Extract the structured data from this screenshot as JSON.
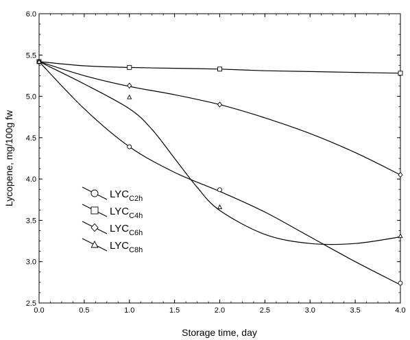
{
  "chart_data": {
    "type": "line",
    "xlabel": "Storage time, day",
    "ylabel": "Lycopene, mg/100g fw",
    "xlim": [
      0.0,
      4.0
    ],
    "ylim": [
      2.5,
      6.0
    ],
    "x_ticks": [
      "0.0",
      "0.5",
      "1.0",
      "1.5",
      "2.0",
      "2.5",
      "3.0",
      "3.5",
      "4.0"
    ],
    "y_ticks": [
      "2.5",
      "3.0",
      "3.5",
      "4.0",
      "4.5",
      "5.0",
      "5.5",
      "6.0"
    ],
    "grid": false,
    "legend_position": "lower-left",
    "series": [
      {
        "name": "LYC",
        "subscript": "C2h",
        "marker": "circle",
        "points": [
          [
            0,
            5.42
          ],
          [
            1,
            4.39
          ],
          [
            2,
            3.87
          ],
          [
            4,
            2.74
          ]
        ],
        "curve": [
          [
            0,
            5.42
          ],
          [
            0.5,
            4.85
          ],
          [
            1,
            4.39
          ],
          [
            1.5,
            4.08
          ],
          [
            2,
            3.85
          ],
          [
            2.5,
            3.6
          ],
          [
            3,
            3.3
          ],
          [
            3.5,
            3.0
          ],
          [
            4,
            2.72
          ]
        ]
      },
      {
        "name": "LYC",
        "subscript": "C4h",
        "marker": "square",
        "points": [
          [
            0,
            5.42
          ],
          [
            1,
            5.35
          ],
          [
            2,
            5.33
          ],
          [
            4,
            5.28
          ]
        ],
        "curve": [
          [
            0,
            5.42
          ],
          [
            0.5,
            5.37
          ],
          [
            1,
            5.35
          ],
          [
            1.5,
            5.34
          ],
          [
            2,
            5.33
          ],
          [
            2.5,
            5.31
          ],
          [
            3,
            5.3
          ],
          [
            3.5,
            5.29
          ],
          [
            4,
            5.28
          ]
        ]
      },
      {
        "name": "LYC",
        "subscript": "C6h",
        "marker": "diamond",
        "points": [
          [
            0,
            5.42
          ],
          [
            1,
            5.13
          ],
          [
            2,
            4.9
          ],
          [
            4,
            4.05
          ]
        ],
        "curve": [
          [
            0,
            5.42
          ],
          [
            0.5,
            5.25
          ],
          [
            1,
            5.12
          ],
          [
            1.5,
            5.02
          ],
          [
            2,
            4.9
          ],
          [
            2.5,
            4.74
          ],
          [
            3,
            4.55
          ],
          [
            3.5,
            4.32
          ],
          [
            4,
            4.05
          ]
        ]
      },
      {
        "name": "LYC",
        "subscript": "C8h",
        "marker": "triangle",
        "points": [
          [
            0,
            5.42
          ],
          [
            1,
            4.99
          ],
          [
            2,
            3.66
          ],
          [
            4,
            3.31
          ]
        ],
        "curve": [
          [
            0,
            5.42
          ],
          [
            0.5,
            5.15
          ],
          [
            1,
            4.85
          ],
          [
            1.25,
            4.6
          ],
          [
            1.5,
            4.25
          ],
          [
            1.75,
            3.9
          ],
          [
            2,
            3.62
          ],
          [
            2.5,
            3.33
          ],
          [
            3,
            3.22
          ],
          [
            3.5,
            3.22
          ],
          [
            4,
            3.3
          ]
        ]
      }
    ]
  }
}
